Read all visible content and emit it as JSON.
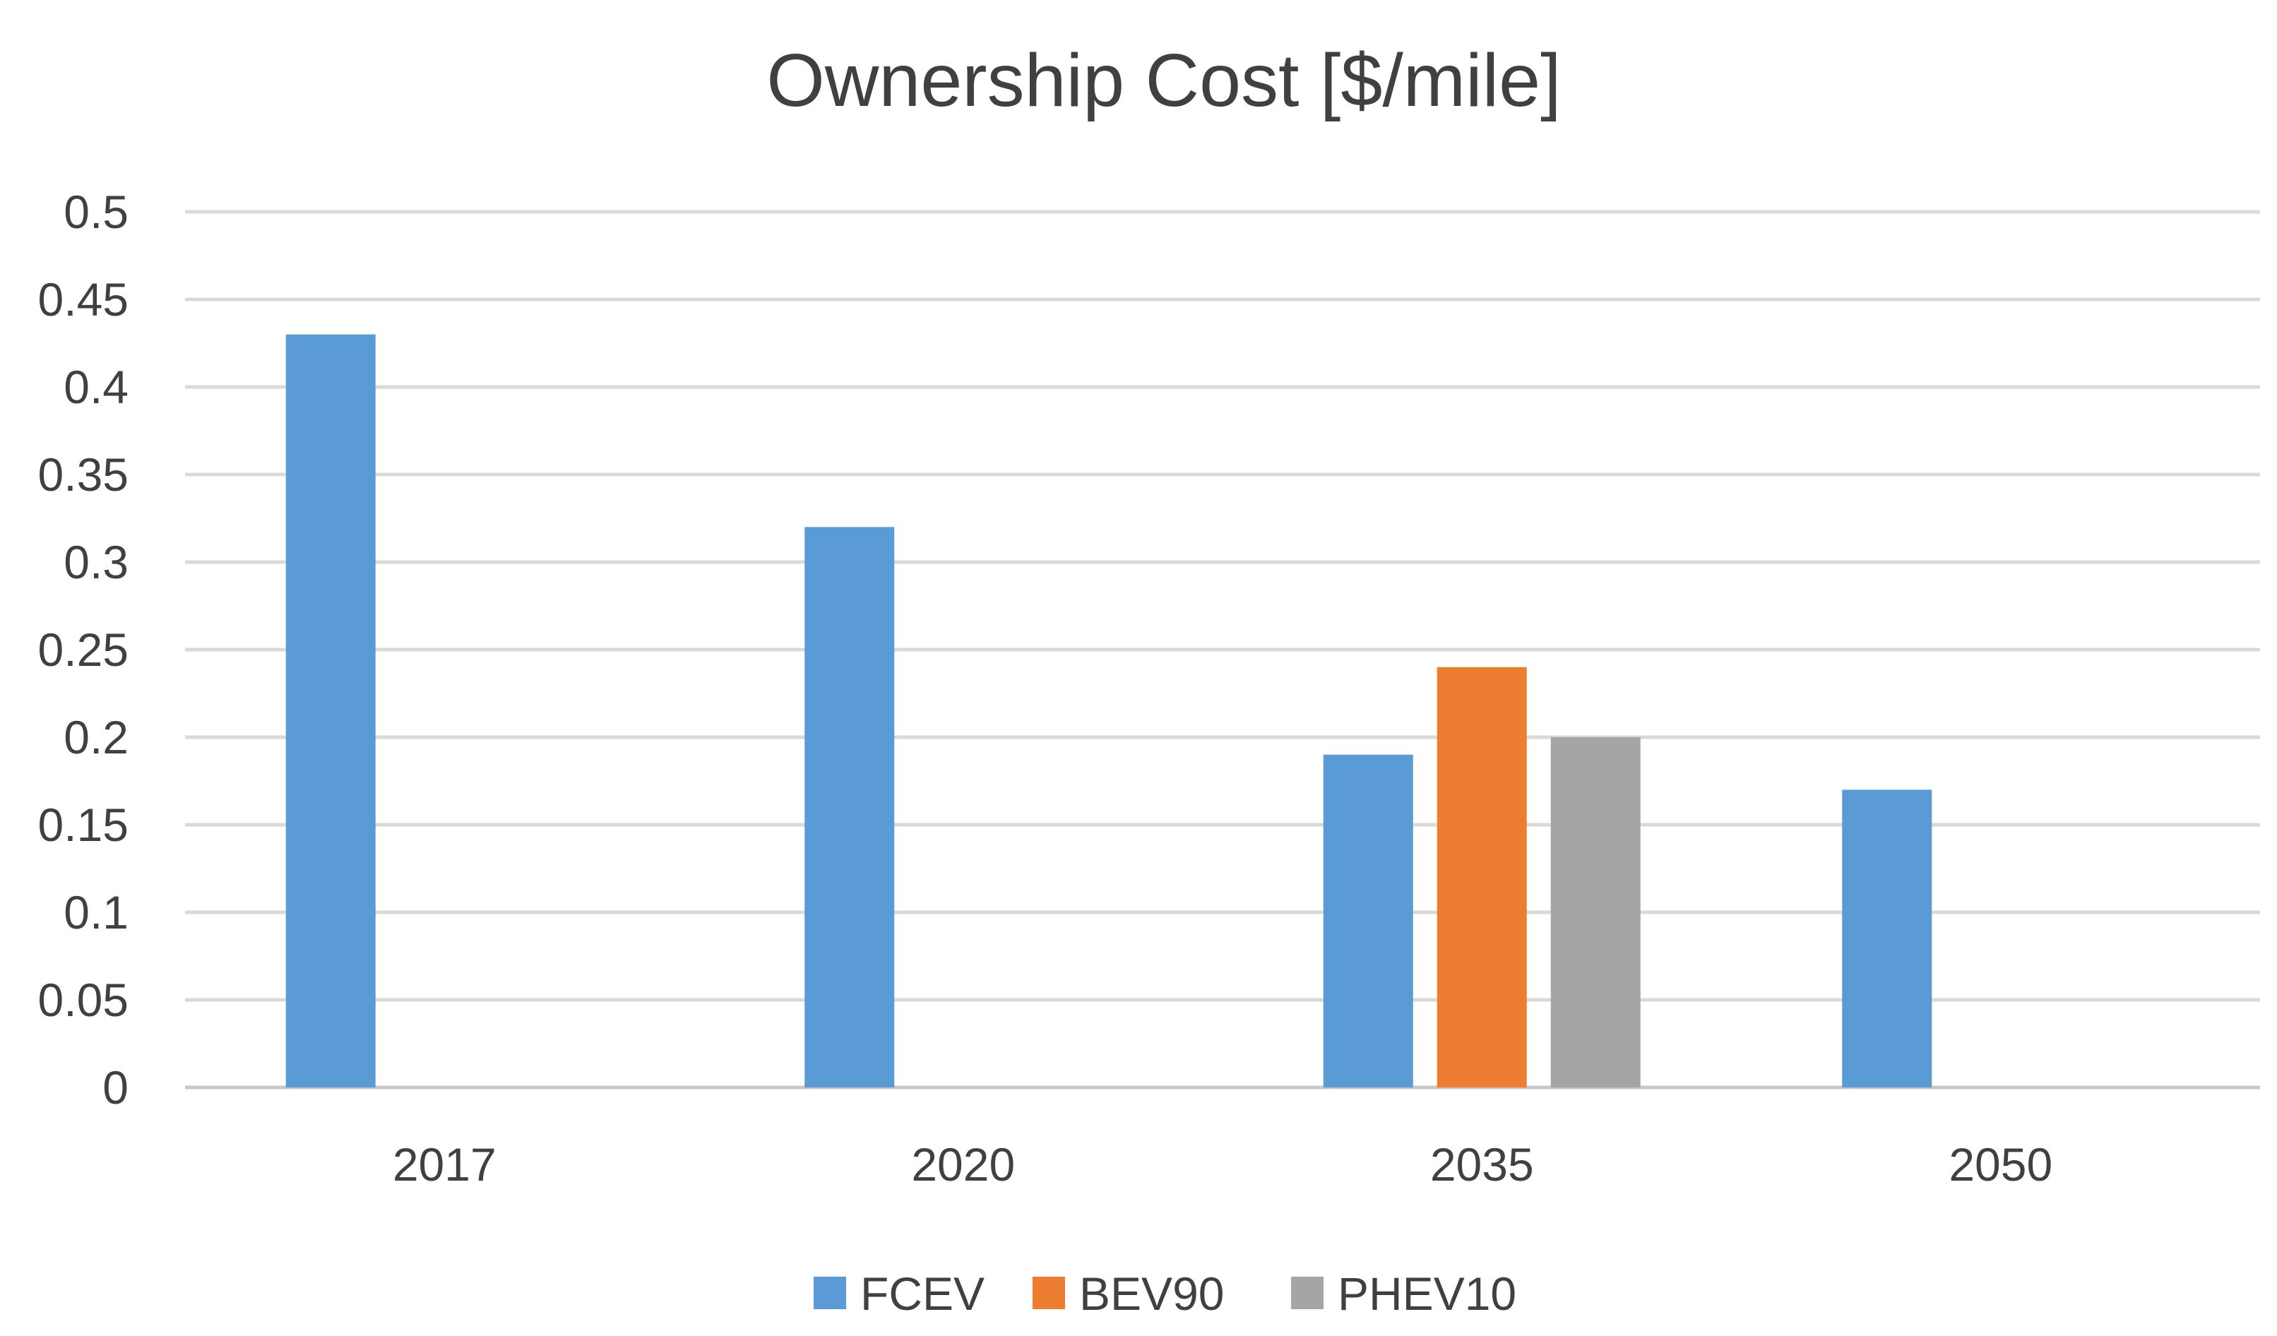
{
  "chart_data": {
    "type": "bar",
    "title": "Ownership Cost [$/mile]",
    "xlabel": "",
    "ylabel": "",
    "categories": [
      "2017",
      "2020",
      "2035",
      "2050"
    ],
    "ylim": [
      0,
      0.5
    ],
    "yticks": [
      "0",
      "0.05",
      "0.1",
      "0.15",
      "0.2",
      "0.25",
      "0.3",
      "0.35",
      "0.4",
      "0.45",
      "0.5"
    ],
    "grid": true,
    "legend_position": "bottom",
    "series": [
      {
        "name": "FCEV",
        "color": "#5b9bd5",
        "values": [
          0.43,
          0.32,
          0.19,
          0.17
        ]
      },
      {
        "name": "BEV90",
        "color": "#ed7d31",
        "values": [
          null,
          null,
          0.24,
          null
        ]
      },
      {
        "name": "PHEV10",
        "color": "#a5a5a5",
        "values": [
          null,
          null,
          0.2,
          null
        ]
      }
    ]
  }
}
